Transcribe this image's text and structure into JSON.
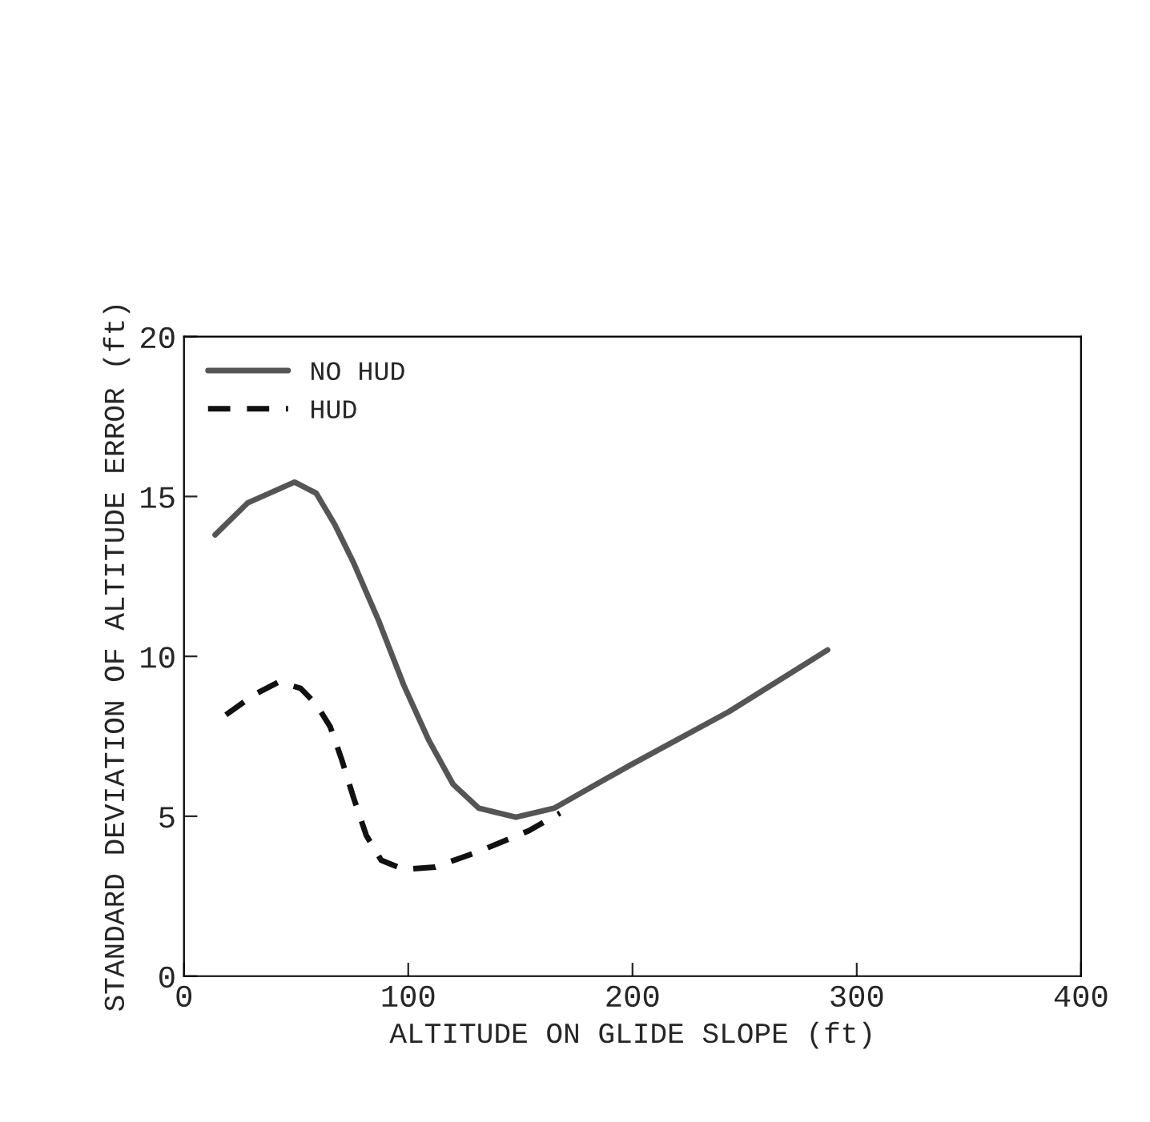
{
  "chart_data": {
    "type": "line",
    "xlabel": "ALTITUDE ON GLIDE SLOPE (ft)",
    "ylabel": "STANDARD DEVIATION OF ALTITUDE ERROR (ft)",
    "xlim": [
      0,
      400
    ],
    "xticks": [
      0,
      100,
      200,
      300,
      400
    ],
    "ylim": [
      0,
      20
    ],
    "yticks": [
      0,
      5,
      10,
      15,
      20
    ],
    "grid": false,
    "legend": "top left",
    "series": [
      {
        "name": "NO HUD",
        "color": "#555555",
        "line_style": "solid",
        "x": [
          13.9,
          28.4,
          49.3,
          59,
          67.4,
          75.8,
          86.9,
          98,
          109,
          120,
          131.5,
          148,
          165,
          198,
          243,
          287
        ],
        "values": [
          13.8,
          14.8,
          15.45,
          15.1,
          14.1,
          12.9,
          11.1,
          9.1,
          7.4,
          6.0,
          5.25,
          4.97,
          5.25,
          6.56,
          8.27,
          10.2
        ]
      },
      {
        "name": "HUD",
        "color": "#111111",
        "line_style": "dashed",
        "x": [
          18.7,
          31.2,
          42.3,
          52,
          59,
          65.2,
          70.2,
          75.8,
          81.3,
          88,
          98,
          112,
          131.5,
          153.8,
          167.7
        ],
        "values": [
          8.17,
          8.8,
          9.2,
          9.0,
          8.5,
          7.8,
          6.8,
          5.54,
          4.4,
          3.62,
          3.34,
          3.41,
          3.9,
          4.55,
          5.1
        ]
      }
    ]
  }
}
